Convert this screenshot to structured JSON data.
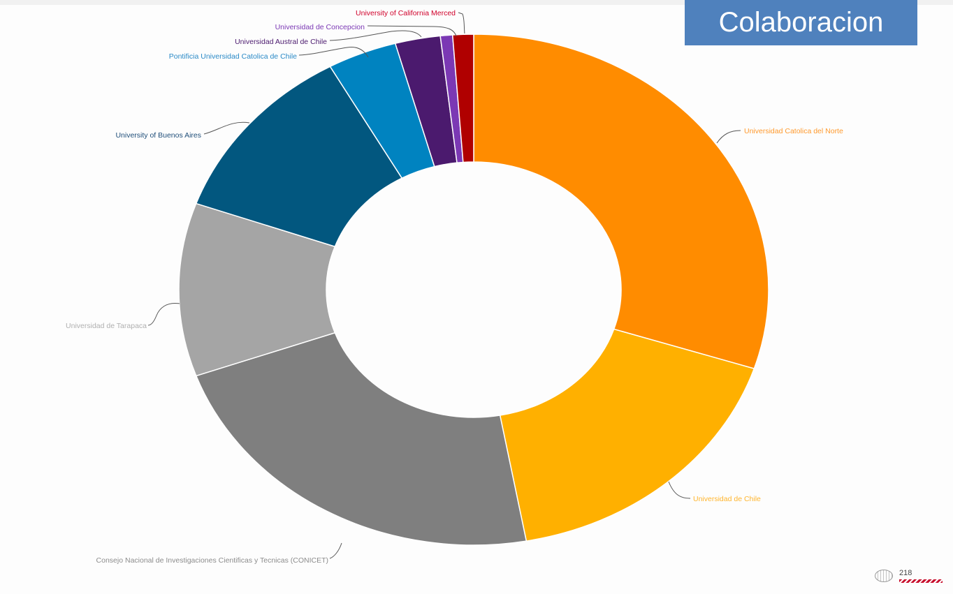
{
  "header": {
    "title": "Colaboracion"
  },
  "footer": {
    "page_number": "218"
  },
  "chart_data": {
    "type": "pie",
    "variant": "donut",
    "title": "Colaboracion",
    "legend": "none (callout labels)",
    "slices": [
      {
        "label": "Universidad Catolica del Norte",
        "value": 31.5,
        "color": "#ff8c00"
      },
      {
        "label": "Universidad de Chile",
        "value": 18.0,
        "color": "#ffb000"
      },
      {
        "label": "Consejo Nacional de Investigaciones Cientificas y Tecnicas (CONICET)",
        "value": 23.5,
        "color": "#7f7f7f"
      },
      {
        "label": "Universidad de Tarapaca",
        "value": 11.5,
        "color": "#a5a5a5"
      },
      {
        "label": "University of Buenos Aires",
        "value": 12.0,
        "color": "#02577f"
      },
      {
        "label": "Pontificia Universidad Catolica de Chile",
        "value": 4.0,
        "color": "#0083c0"
      },
      {
        "label": "Universidad Austral de Chile",
        "value": 2.6,
        "color": "#4b1a6e"
      },
      {
        "label": "Universidad de Concepcion",
        "value": 0.7,
        "color": "#7b38b4"
      },
      {
        "label": "University of California Merced",
        "value": 1.2,
        "color": "#b00000"
      }
    ],
    "label_colors": [
      "#ff9a2e",
      "#ffb52e",
      "#8c8c8c",
      "#b0b0b0",
      "#1f4e79",
      "#2a8ac7",
      "#4b1a6e",
      "#7b38b4",
      "#d0002a"
    ]
  }
}
